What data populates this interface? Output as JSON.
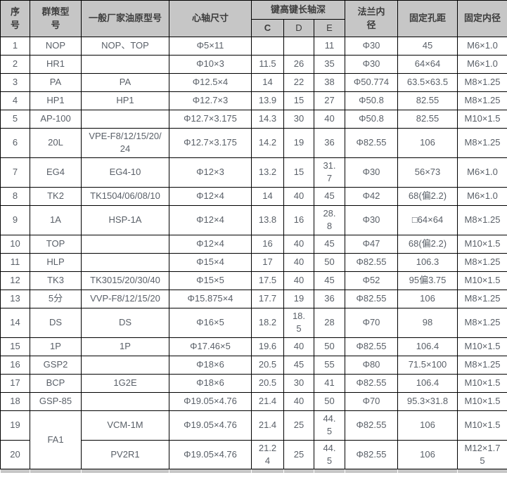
{
  "table": {
    "header": {
      "serial": "序\n号",
      "model": "群策型\n号",
      "manufacturer": "一般厂家油原型号",
      "spindle": "心轴尺寸",
      "key_group": "键高键长轴深",
      "sub_c": "C",
      "sub_d": "D",
      "sub_e": "E",
      "flange": "法兰内\n径",
      "hole_pitch": "固定孔距",
      "fixed_inner": "固定内径"
    },
    "rows": [
      [
        "1",
        "NOP",
        "NOP、TOP",
        "Φ5×11",
        "",
        "",
        "11",
        "Φ30",
        "45",
        "M6×1.0"
      ],
      [
        "2",
        "HR1",
        "",
        "Φ10×3",
        "11.5",
        "26",
        "35",
        "Φ30",
        "64×64",
        "M6×1.0"
      ],
      [
        "3",
        "PA",
        "PA",
        "Φ12.5×4",
        "14",
        "22",
        "38",
        "Φ50.774",
        "63.5×63.5",
        "M8×1.25"
      ],
      [
        "4",
        "HP1",
        "HP1",
        "Φ12.7×3",
        "13.9",
        "15",
        "27",
        "Φ50.8",
        "82.55",
        "M8×1.25"
      ],
      [
        "5",
        "AP-100",
        "",
        "Φ12.7×3.175",
        "14.3",
        "30",
        "40",
        "Φ50.8",
        "82.55",
        "M10×1.5"
      ],
      [
        "6",
        "20L",
        "VPE-F8/12/15/20/\n24",
        "Φ12.7×3.175",
        "14.2",
        "19",
        "36",
        "Φ82.55",
        "106",
        "M8×1.25"
      ],
      [
        "7",
        "EG4",
        "EG4-10",
        "Φ12×3",
        "13.2",
        "15",
        "31.\n7",
        "Φ30",
        "56×73",
        "M6×1.0"
      ],
      [
        "8",
        "TK2",
        "TK1504/06/08/10",
        "Φ12×4",
        "14",
        "40",
        "45",
        "Φ42",
        "68(偏2.2)",
        "M6×1.0"
      ],
      [
        "9",
        "1A",
        "HSP-1A",
        "Φ12×4",
        "13.8",
        "16",
        "28.\n8",
        "Φ30",
        "□64×64",
        "M8×1.25"
      ],
      [
        "10",
        "TOP",
        "",
        "Φ12×4",
        "16",
        "40",
        "45",
        "Φ47",
        "68(偏2.2)",
        "M10×1.5"
      ],
      [
        "11",
        "HLP",
        "",
        "Φ15×4",
        "17",
        "40",
        "50",
        "Φ82.55",
        "106.3",
        "M8×1.25"
      ],
      [
        "12",
        "TK3",
        "TK3015/20/30/40",
        "Φ15×5",
        "17.5",
        "40",
        "45",
        "Φ52",
        "95偏3.75",
        "M10×1.5"
      ],
      [
        "13",
        "5分",
        "VVP-F8/12/15/20",
        "Φ15.875×4",
        "17.7",
        "19",
        "36",
        "Φ82.55",
        "106",
        "M8×1.25"
      ],
      [
        "14",
        "DS",
        "DS",
        "Φ16×5",
        "18.2",
        "18.\n5",
        "28",
        "Φ70",
        "98",
        "M8×1.25"
      ],
      [
        "15",
        "1P",
        "1P",
        "Φ17.46×5",
        "19.6",
        "40",
        "50",
        "Φ82.55",
        "106.4",
        "M10×1.5"
      ],
      [
        "16",
        "GSP2",
        "",
        "Φ18×6",
        "20.5",
        "45",
        "55",
        "Φ80",
        "71.5×100",
        "M8×1.25"
      ],
      [
        "17",
        "BCP",
        "1G2E",
        "Φ18×6",
        "20.5",
        "30",
        "41",
        "Φ82.55",
        "106.4",
        "M10×1.5"
      ],
      [
        "18",
        "GSP-85",
        "",
        "Φ19.05×4.76",
        "21.4",
        "40",
        "50",
        "Φ70",
        "95.3×31.8",
        "M10×1.5"
      ],
      [
        "19",
        "FA1",
        "VCM-1M",
        "Φ19.05×4.76",
        "21.4",
        "25",
        "44.\n5",
        "Φ82.55",
        "106",
        "M10×1.5"
      ],
      [
        "20",
        null,
        "PV2R1",
        "Φ19.05×4.76",
        "21.2\n4",
        "25",
        "44.\n5",
        "Φ82.55",
        "106",
        "M12×1.7\n5"
      ]
    ],
    "merges": [
      {
        "row": 18,
        "col": 1,
        "rowspan": 2
      }
    ],
    "colors": {
      "header_bg": "#c6c6c6",
      "border": "#000000",
      "data_text": "#5a6068",
      "header_text": "#3d3d3d"
    }
  }
}
